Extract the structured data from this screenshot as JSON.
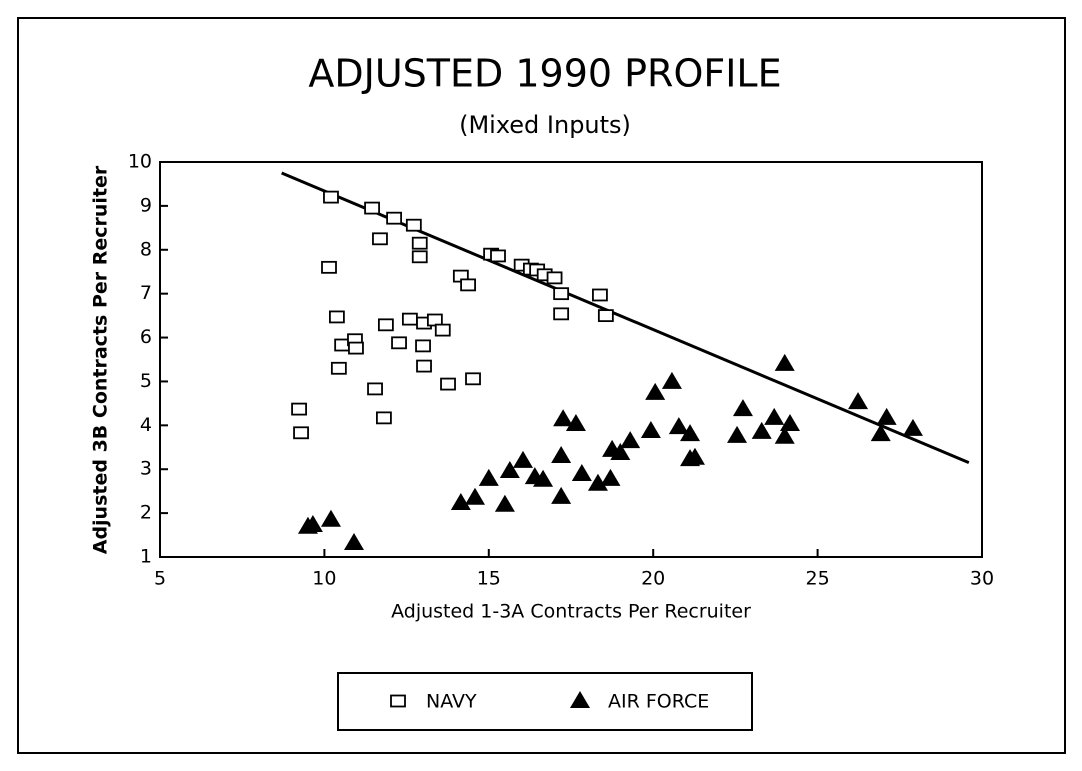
{
  "chart_data": {
    "type": "scatter",
    "title": "ADJUSTED 1990 PROFILE",
    "subtitle": "(Mixed Inputs)",
    "xlabel": "Adjusted 1-3A Contracts Per Recruiter",
    "ylabel": "Adjusted 3B Contracts Per Recruiter",
    "xlim": [
      5,
      30
    ],
    "xticks": [
      5,
      10,
      15,
      20,
      25,
      30
    ],
    "ylim": [
      1,
      10
    ],
    "yticks": [
      1,
      2,
      3,
      4,
      5,
      6,
      7,
      8,
      9,
      10
    ],
    "grid": false,
    "legend": "bottom",
    "series": [
      {
        "name": "NAVY",
        "color": "#000000",
        "marker": "square",
        "x": [
          10.2,
          11.45,
          12.12,
          12.72,
          11.69,
          12.9,
          12.9,
          10.14,
          14.15,
          14.37,
          15.07,
          15.28,
          16.0,
          16.28,
          16.47,
          16.7,
          17.0,
          17.2,
          17.2,
          18.38,
          18.56,
          10.38,
          11.87,
          12.6,
          13.03,
          13.36,
          13.6,
          10.54,
          10.93,
          10.96,
          12.27,
          13.0,
          13.03,
          10.44,
          11.54,
          13.76,
          14.52,
          11.81,
          9.23,
          9.29
        ],
        "values": [
          9.2,
          8.95,
          8.72,
          8.56,
          8.25,
          8.15,
          7.84,
          7.6,
          7.4,
          7.2,
          7.9,
          7.86,
          7.65,
          7.56,
          7.54,
          7.43,
          7.36,
          7.0,
          6.54,
          6.97,
          6.5,
          6.47,
          6.29,
          6.42,
          6.33,
          6.4,
          6.17,
          5.83,
          5.95,
          5.76,
          5.88,
          5.81,
          5.35,
          5.3,
          4.83,
          4.94,
          5.06,
          4.17,
          4.37,
          3.83
        ]
      },
      {
        "name": "AIR FORCE",
        "color": "#000000",
        "marker": "triangle",
        "x": [
          9.5,
          9.65,
          10.2,
          10.9,
          14.15,
          14.58,
          15.0,
          15.49,
          15.64,
          16.04,
          16.4,
          16.65,
          17.2,
          17.2,
          17.26,
          17.65,
          17.83,
          18.32,
          18.7,
          18.75,
          19.0,
          19.3,
          19.93,
          20.06,
          20.57,
          20.78,
          21.12,
          21.12,
          21.27,
          22.55,
          22.73,
          23.3,
          23.68,
          24.0,
          24.16,
          24.0,
          26.23,
          26.92,
          27.1,
          27.9
        ],
        "values": [
          1.69,
          1.73,
          1.85,
          1.32,
          2.23,
          2.35,
          2.78,
          2.19,
          2.96,
          3.19,
          2.82,
          2.76,
          2.37,
          3.3,
          4.14,
          4.03,
          2.89,
          2.67,
          2.78,
          3.44,
          3.37,
          3.64,
          3.87,
          4.74,
          4.99,
          3.96,
          3.8,
          3.23,
          3.26,
          3.76,
          4.37,
          3.85,
          4.17,
          3.74,
          4.03,
          5.4,
          4.53,
          3.8,
          4.17,
          3.92
        ]
      }
    ],
    "trend_line": {
      "x": [
        8.7,
        29.6
      ],
      "y": [
        9.75,
        3.15
      ]
    }
  }
}
